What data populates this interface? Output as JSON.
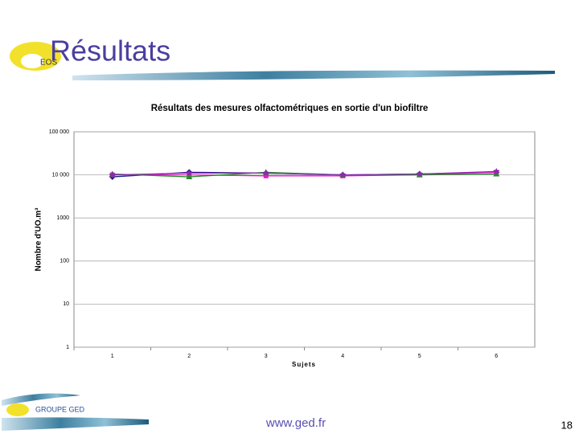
{
  "slide": {
    "title": "Résultats",
    "logo_text": "EOS",
    "footer_logo": "GROUPE GED",
    "footer_url": "www.ged.fr",
    "page_number": 18
  },
  "chart_data": {
    "type": "line",
    "title": "Résultats des mesures olfactométriques en sortie d'un biofiltre",
    "x_label": "Sujets",
    "y_label": "Nombre d'UO.m³",
    "categories": [
      "1",
      "2",
      "3",
      "4",
      "5",
      "6"
    ],
    "log_scale": true,
    "grid": true,
    "ylim": [
      1,
      100000
    ],
    "yticks": [
      {
        "value": 100000,
        "label": "100 000"
      },
      {
        "value": 10000,
        "label": "10 000"
      },
      1000,
      100,
      10,
      1
    ],
    "series": [
      {
        "color": "#1c1c8c",
        "marker": "diamond",
        "values": [
          9000,
          11500,
          11000,
          10000,
          10500,
          11500
        ]
      },
      {
        "color": "#e020c0",
        "marker": "square",
        "values": [
          10000,
          10000,
          9500,
          9500,
          10000,
          11500
        ]
      },
      {
        "color": "#2a8a2a",
        "marker": "triangle",
        "values": [
          10500,
          9000,
          11500,
          10000,
          10000,
          10500
        ]
      },
      {
        "color": "#8a2ab0",
        "marker": "star",
        "values": [
          10000,
          11000,
          11000,
          10000,
          10500,
          12000
        ]
      }
    ]
  }
}
